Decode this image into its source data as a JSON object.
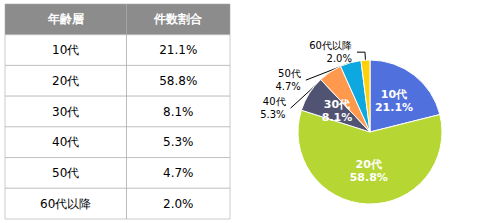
{
  "chart_data": {
    "type": "pie",
    "categories": [
      "10代",
      "20代",
      "30代",
      "40代",
      "50代",
      "60代以降"
    ],
    "values": [
      21.1,
      58.8,
      8.1,
      5.3,
      4.7,
      2.0
    ],
    "value_labels": [
      "21.1%",
      "58.8%",
      "8.1%",
      "5.3%",
      "4.7%",
      "2.0%"
    ],
    "data_labels": true,
    "table_header": [
      "年齢層",
      "件数割合"
    ]
  }
}
